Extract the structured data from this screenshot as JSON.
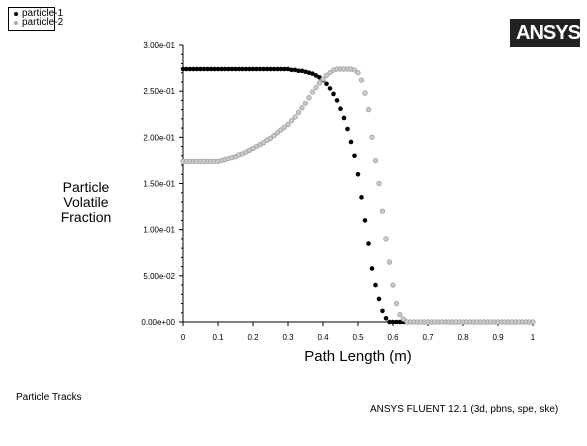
{
  "footer": {
    "left": "Particle Tracks",
    "right": "ANSYS FLUENT 12.1 (3d, pbns, spe, ske)"
  },
  "logo": {
    "text": "ANSYS"
  },
  "chart_data": {
    "type": "scatter",
    "title": "",
    "xlabel": "Path Length (m)",
    "ylabel": "Particle Volatile Fraction",
    "xlim": [
      0,
      1
    ],
    "ylim": [
      0,
      0.3
    ],
    "xticks": [
      "0",
      "0.1",
      "0.2",
      "0.3",
      "0.4",
      "0.5",
      "0.6",
      "0.7",
      "0.8",
      "0.9",
      "1"
    ],
    "yticks": [
      "0.00e+00",
      "5.00e-02",
      "1.00e-01",
      "1.50e-01",
      "2.00e-01",
      "2.50e-01",
      "3.00e-01"
    ],
    "grid": false,
    "legend_position": "top-left",
    "series": [
      {
        "name": "particle-1",
        "color": "#000000",
        "points": [
          [
            0.0,
            0.274
          ],
          [
            0.01,
            0.274
          ],
          [
            0.02,
            0.274
          ],
          [
            0.03,
            0.274
          ],
          [
            0.04,
            0.274
          ],
          [
            0.05,
            0.274
          ],
          [
            0.06,
            0.274
          ],
          [
            0.07,
            0.274
          ],
          [
            0.08,
            0.274
          ],
          [
            0.09,
            0.274
          ],
          [
            0.1,
            0.274
          ],
          [
            0.11,
            0.274
          ],
          [
            0.12,
            0.274
          ],
          [
            0.13,
            0.274
          ],
          [
            0.14,
            0.274
          ],
          [
            0.15,
            0.274
          ],
          [
            0.16,
            0.274
          ],
          [
            0.17,
            0.274
          ],
          [
            0.18,
            0.274
          ],
          [
            0.19,
            0.274
          ],
          [
            0.2,
            0.274
          ],
          [
            0.21,
            0.274
          ],
          [
            0.22,
            0.274
          ],
          [
            0.23,
            0.274
          ],
          [
            0.24,
            0.274
          ],
          [
            0.25,
            0.274
          ],
          [
            0.26,
            0.274
          ],
          [
            0.27,
            0.274
          ],
          [
            0.28,
            0.274
          ],
          [
            0.29,
            0.274
          ],
          [
            0.3,
            0.274
          ],
          [
            0.31,
            0.273
          ],
          [
            0.32,
            0.273
          ],
          [
            0.33,
            0.272
          ],
          [
            0.34,
            0.272
          ],
          [
            0.35,
            0.271
          ],
          [
            0.36,
            0.27
          ],
          [
            0.37,
            0.269
          ],
          [
            0.38,
            0.267
          ],
          [
            0.39,
            0.265
          ],
          [
            0.4,
            0.262
          ],
          [
            0.41,
            0.258
          ],
          [
            0.42,
            0.253
          ],
          [
            0.43,
            0.247
          ],
          [
            0.44,
            0.24
          ],
          [
            0.45,
            0.231
          ],
          [
            0.46,
            0.221
          ],
          [
            0.47,
            0.209
          ],
          [
            0.48,
            0.195
          ],
          [
            0.49,
            0.18
          ],
          [
            0.5,
            0.16
          ],
          [
            0.51,
            0.135
          ],
          [
            0.52,
            0.11
          ],
          [
            0.53,
            0.085
          ],
          [
            0.54,
            0.058
          ],
          [
            0.55,
            0.04
          ],
          [
            0.56,
            0.025
          ],
          [
            0.57,
            0.012
          ],
          [
            0.58,
            0.004
          ],
          [
            0.59,
            0.0
          ],
          [
            0.6,
            0.0
          ],
          [
            0.61,
            0.0
          ],
          [
            0.62,
            0.0
          ],
          [
            0.63,
            0.0
          ]
        ]
      },
      {
        "name": "particle-2",
        "color": "#aaaaaa",
        "points": [
          [
            0.0,
            0.174
          ],
          [
            0.01,
            0.174
          ],
          [
            0.02,
            0.174
          ],
          [
            0.03,
            0.174
          ],
          [
            0.04,
            0.174
          ],
          [
            0.05,
            0.174
          ],
          [
            0.06,
            0.174
          ],
          [
            0.07,
            0.174
          ],
          [
            0.08,
            0.174
          ],
          [
            0.09,
            0.174
          ],
          [
            0.1,
            0.174
          ],
          [
            0.11,
            0.175
          ],
          [
            0.12,
            0.176
          ],
          [
            0.13,
            0.177
          ],
          [
            0.14,
            0.178
          ],
          [
            0.15,
            0.179
          ],
          [
            0.16,
            0.181
          ],
          [
            0.17,
            0.182
          ],
          [
            0.18,
            0.184
          ],
          [
            0.19,
            0.186
          ],
          [
            0.2,
            0.188
          ],
          [
            0.21,
            0.19
          ],
          [
            0.22,
            0.192
          ],
          [
            0.23,
            0.194
          ],
          [
            0.24,
            0.197
          ],
          [
            0.25,
            0.199
          ],
          [
            0.26,
            0.202
          ],
          [
            0.27,
            0.205
          ],
          [
            0.28,
            0.208
          ],
          [
            0.29,
            0.211
          ],
          [
            0.3,
            0.214
          ],
          [
            0.31,
            0.218
          ],
          [
            0.32,
            0.222
          ],
          [
            0.33,
            0.227
          ],
          [
            0.34,
            0.232
          ],
          [
            0.35,
            0.237
          ],
          [
            0.36,
            0.243
          ],
          [
            0.37,
            0.249
          ],
          [
            0.38,
            0.254
          ],
          [
            0.39,
            0.259
          ],
          [
            0.4,
            0.263
          ],
          [
            0.41,
            0.267
          ],
          [
            0.42,
            0.27
          ],
          [
            0.43,
            0.273
          ],
          [
            0.44,
            0.274
          ],
          [
            0.45,
            0.274
          ],
          [
            0.46,
            0.274
          ],
          [
            0.47,
            0.274
          ],
          [
            0.48,
            0.274
          ],
          [
            0.49,
            0.273
          ],
          [
            0.5,
            0.27
          ],
          [
            0.51,
            0.262
          ],
          [
            0.52,
            0.248
          ],
          [
            0.53,
            0.23
          ],
          [
            0.54,
            0.2
          ],
          [
            0.55,
            0.175
          ],
          [
            0.56,
            0.15
          ],
          [
            0.57,
            0.12
          ],
          [
            0.58,
            0.09
          ],
          [
            0.59,
            0.065
          ],
          [
            0.6,
            0.04
          ],
          [
            0.61,
            0.02
          ],
          [
            0.62,
            0.008
          ],
          [
            0.63,
            0.003
          ],
          [
            0.64,
            0.0
          ],
          [
            0.65,
            0.0
          ],
          [
            0.66,
            0.0
          ],
          [
            0.67,
            0.0
          ],
          [
            0.68,
            0.0
          ],
          [
            0.69,
            0.0
          ],
          [
            0.7,
            0.0
          ],
          [
            0.71,
            0.0
          ],
          [
            0.72,
            0.0
          ],
          [
            0.73,
            0.0
          ],
          [
            0.74,
            0.0
          ],
          [
            0.75,
            0.0
          ],
          [
            0.76,
            0.0
          ],
          [
            0.77,
            0.0
          ],
          [
            0.78,
            0.0
          ],
          [
            0.79,
            0.0
          ],
          [
            0.8,
            0.0
          ],
          [
            0.81,
            0.0
          ],
          [
            0.82,
            0.0
          ],
          [
            0.83,
            0.0
          ],
          [
            0.84,
            0.0
          ],
          [
            0.85,
            0.0
          ],
          [
            0.86,
            0.0
          ],
          [
            0.87,
            0.0
          ],
          [
            0.88,
            0.0
          ],
          [
            0.89,
            0.0
          ],
          [
            0.9,
            0.0
          ],
          [
            0.91,
            0.0
          ],
          [
            0.92,
            0.0
          ],
          [
            0.93,
            0.0
          ],
          [
            0.94,
            0.0
          ],
          [
            0.95,
            0.0
          ],
          [
            0.96,
            0.0
          ],
          [
            0.97,
            0.0
          ],
          [
            0.98,
            0.0
          ],
          [
            0.99,
            0.0
          ],
          [
            1.0,
            0.0
          ]
        ]
      }
    ]
  }
}
